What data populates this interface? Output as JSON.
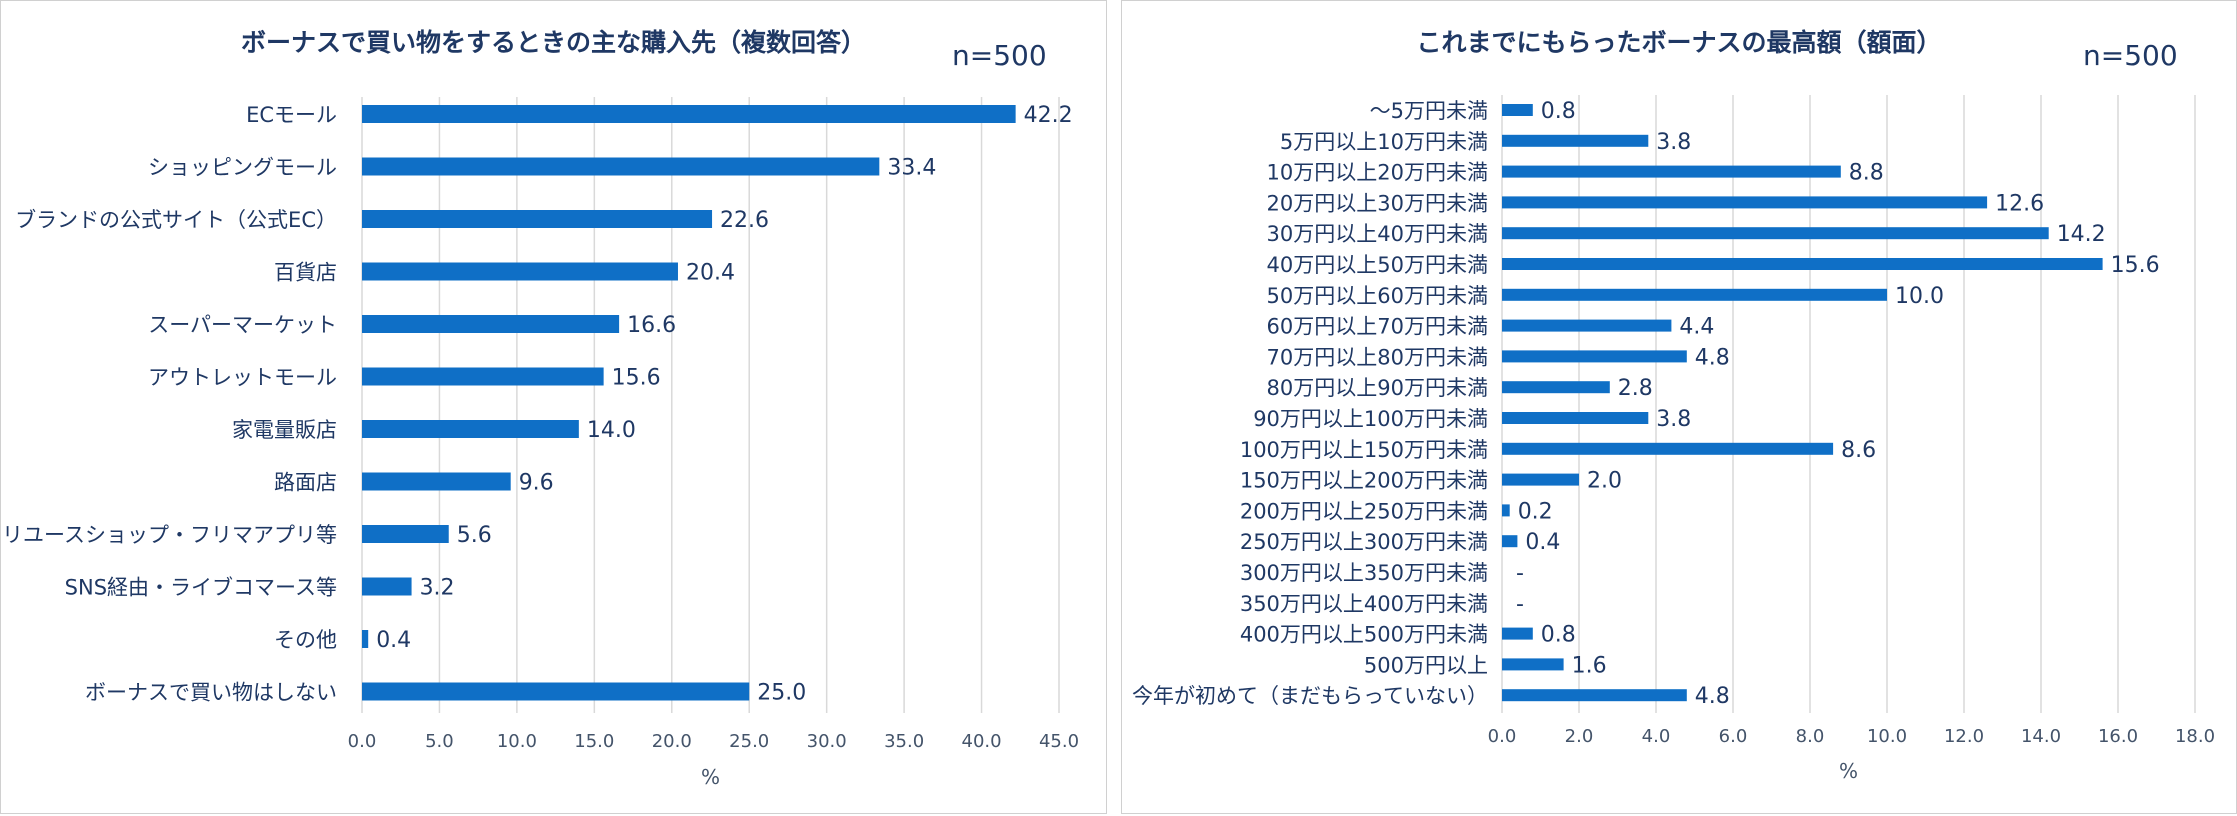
{
  "chart_data": [
    {
      "type": "bar",
      "orientation": "horizontal",
      "title": "ボーナスで買い物をするときの主な購入先（複数回答）",
      "sample": "n=500",
      "xlabel": "%",
      "xlim": [
        0,
        45
      ],
      "ticks": [
        "0.0",
        "5.0",
        "10.0",
        "15.0",
        "20.0",
        "25.0",
        "30.0",
        "35.0",
        "40.0",
        "45.0"
      ],
      "grid": true,
      "bar_color": "#0f6fc6",
      "categories": [
        "ECモール",
        "ショッピングモール",
        "ブランドの公式サイト（公式EC）",
        "百貨店",
        "スーパーマーケット",
        "アウトレットモール",
        "家電量販店",
        "路面店",
        "リユースショップ・フリマアプリ等",
        "SNS経由・ライブコマース等",
        "その他",
        "ボーナスで買い物はしない"
      ],
      "values": [
        42.2,
        33.4,
        22.6,
        20.4,
        16.6,
        15.6,
        14.0,
        9.6,
        5.6,
        3.2,
        0.4,
        25.0
      ],
      "value_labels": [
        "42.2",
        "33.4",
        "22.6",
        "20.4",
        "16.6",
        "15.6",
        "14.0",
        "9.6",
        "5.6",
        "3.2",
        "0.4",
        "25.0"
      ]
    },
    {
      "type": "bar",
      "orientation": "horizontal",
      "title": "これまでにもらったボーナスの最高額（額面）",
      "sample": "n=500",
      "xlabel": "%",
      "xlim": [
        0,
        18
      ],
      "ticks": [
        "0.0",
        "2.0",
        "4.0",
        "6.0",
        "8.0",
        "10.0",
        "12.0",
        "14.0",
        "16.0",
        "18.0"
      ],
      "grid": true,
      "bar_color": "#0f6fc6",
      "categories": [
        "～5万円未満",
        "5万円以上10万円未満",
        "10万円以上20万円未満",
        "20万円以上30万円未満",
        "30万円以上40万円未満",
        "40万円以上50万円未満",
        "50万円以上60万円未満",
        "60万円以上70万円未満",
        "70万円以上80万円未満",
        "80万円以上90万円未満",
        "90万円以上100万円未満",
        "100万円以上150万円未満",
        "150万円以上200万円未満",
        "200万円以上250万円未満",
        "250万円以上300万円未満",
        "300万円以上350万円未満",
        "350万円以上400万円未満",
        "400万円以上500万円未満",
        "500万円以上",
        "今年が初めて（まだもらっていない）"
      ],
      "values": [
        0.8,
        3.8,
        8.8,
        12.6,
        14.2,
        15.6,
        10.0,
        4.4,
        4.8,
        2.8,
        3.8,
        8.6,
        2.0,
        0.2,
        0.4,
        0,
        0,
        0.8,
        1.6,
        4.8
      ],
      "value_labels": [
        "0.8",
        "3.8",
        "8.8",
        "12.6",
        "14.2",
        "15.6",
        "10.0",
        "4.4",
        "4.8",
        "2.8",
        "3.8",
        "8.6",
        "2.0",
        "0.2",
        "0.4",
        "-",
        "-",
        "0.8",
        "1.6",
        "4.8"
      ]
    }
  ]
}
